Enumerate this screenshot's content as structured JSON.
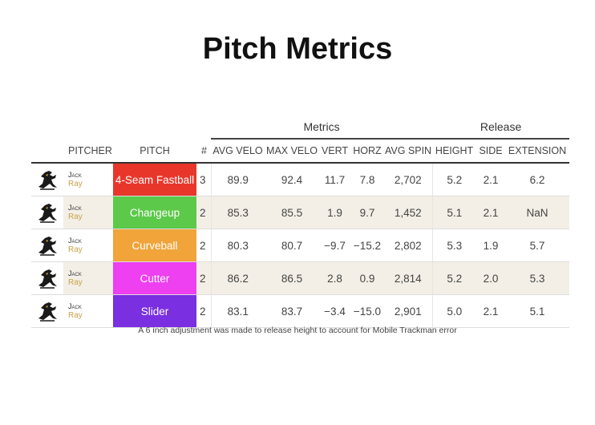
{
  "title": "Pitch Metrics",
  "groups": {
    "metrics": "Metrics",
    "release": "Release"
  },
  "headers": {
    "pitcher": "PITCHER",
    "pitch": "PITCH",
    "count": "#",
    "avg_velo": "AVG VELO",
    "max_velo": "MAX VELO",
    "vert": "VERT",
    "horz": "HORZ",
    "avg_spin": "AVG SPIN",
    "height": "HEIGHT",
    "side": "SIDE",
    "extension": "EXTENSION"
  },
  "rows": [
    {
      "first": "Jack",
      "last": "Ray",
      "pitch": "4-Seam Fastball",
      "color": "#e8362b",
      "count": "3",
      "avg_velo": "89.9",
      "max_velo": "92.4",
      "vert": "11.7",
      "horz": "7.8",
      "avg_spin": "2,702",
      "height": "5.2",
      "side": "2.1",
      "extension": "6.2",
      "icon": "team-logo-icon"
    },
    {
      "first": "Jack",
      "last": "Ray",
      "pitch": "Changeup",
      "color": "#5cc94a",
      "count": "2",
      "avg_velo": "85.3",
      "max_velo": "85.5",
      "vert": "1.9",
      "horz": "9.7",
      "avg_spin": "1,452",
      "height": "5.1",
      "side": "2.1",
      "extension": "NaN",
      "icon": "team-logo-icon"
    },
    {
      "first": "Jack",
      "last": "Ray",
      "pitch": "Curveball",
      "color": "#f0a43a",
      "count": "2",
      "avg_velo": "80.3",
      "max_velo": "80.7",
      "vert": "−9.7",
      "horz": "−15.2",
      "avg_spin": "2,802",
      "height": "5.3",
      "side": "1.9",
      "extension": "5.7",
      "icon": "team-logo-icon"
    },
    {
      "first": "Jack",
      "last": "Ray",
      "pitch": "Cutter",
      "color": "#ee3ff0",
      "count": "2",
      "avg_velo": "86.2",
      "max_velo": "86.5",
      "vert": "2.8",
      "horz": "0.9",
      "avg_spin": "2,814",
      "height": "5.2",
      "side": "2.0",
      "extension": "5.3",
      "icon": "team-logo-icon"
    },
    {
      "first": "Jack",
      "last": "Ray",
      "pitch": "Slider",
      "color": "#7a2fe0",
      "count": "2",
      "avg_velo": "83.1",
      "max_velo": "83.7",
      "vert": "−3.4",
      "horz": "−15.0",
      "avg_spin": "2,901",
      "height": "5.0",
      "side": "2.1",
      "extension": "5.1",
      "icon": "team-logo-icon"
    }
  ],
  "footnote": "A 6 inch adjustment was made to release height to account for Mobile Trackman error"
}
